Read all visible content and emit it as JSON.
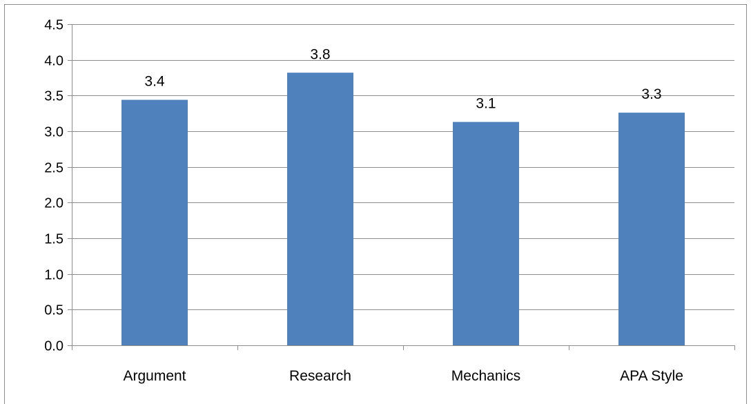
{
  "chart_data": {
    "type": "bar",
    "title": "",
    "xlabel": "",
    "ylabel": "",
    "categories": [
      "Argument",
      "Research",
      "Mechanics",
      "APA Style"
    ],
    "values": [
      3.44,
      3.82,
      3.13,
      3.26
    ],
    "data_labels": [
      "3.4",
      "3.8",
      "3.1",
      "3.3"
    ],
    "ylim": [
      0,
      4.5
    ],
    "yticks": [
      "0.0",
      "0.5",
      "1.0",
      "1.5",
      "2.0",
      "2.5",
      "3.0",
      "3.5",
      "4.0",
      "4.5"
    ],
    "ytick_values": [
      0,
      0.5,
      1.0,
      1.5,
      2.0,
      2.5,
      3.0,
      3.5,
      4.0,
      4.5
    ],
    "grid": true,
    "legend": "none",
    "bar_color": "#4f81bd",
    "grid_color": "#8c8c8c",
    "axis_color": "#8c8c8c"
  }
}
